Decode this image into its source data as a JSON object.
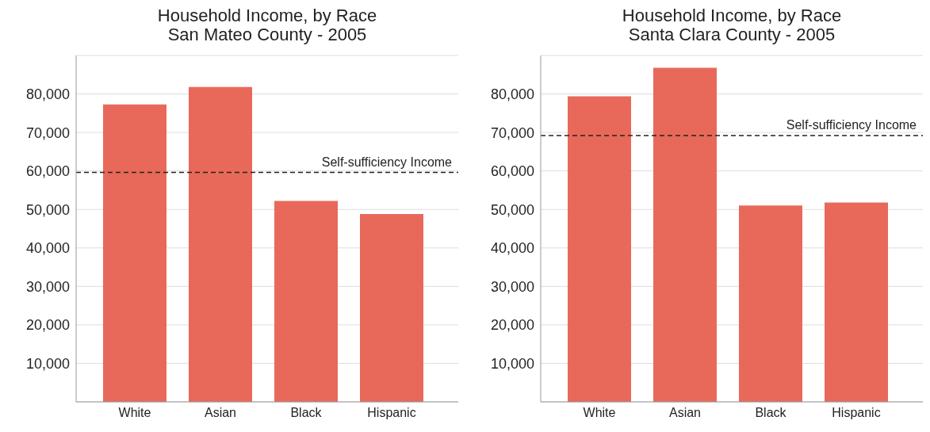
{
  "chart_data": [
    {
      "type": "bar",
      "title": "Household Income, by Race",
      "subtitle": "San Mateo County - 2005",
      "categories": [
        "White",
        "Asian",
        "Black",
        "Hispanic"
      ],
      "values": [
        77300,
        81800,
        52200,
        48800
      ],
      "color": "#e8695a",
      "ylim": [
        0,
        90000
      ],
      "yticks": [
        {
          "value": 10000,
          "label": "10,000"
        },
        {
          "value": 20000,
          "label": "20,000"
        },
        {
          "value": 30000,
          "label": "30,000"
        },
        {
          "value": 40000,
          "label": "40,000"
        },
        {
          "value": 50000,
          "label": "50,000"
        },
        {
          "value": 60000,
          "label": "60,000"
        },
        {
          "value": 70000,
          "label": "70,000"
        },
        {
          "value": 80000,
          "label": "80,000"
        }
      ],
      "grid": "y",
      "ref_lines": [
        {
          "axis": "y",
          "value": 59600,
          "label": "Self-sufficiency Income",
          "line_style": "dashed",
          "color": "#222222"
        }
      ]
    },
    {
      "type": "bar",
      "title": "Household Income, by Race",
      "subtitle": "Santa Clara County - 2005",
      "categories": [
        "White",
        "Asian",
        "Black",
        "Hispanic"
      ],
      "values": [
        79400,
        86800,
        51000,
        51800
      ],
      "color": "#e8695a",
      "ylim": [
        0,
        90000
      ],
      "yticks": [
        {
          "value": 10000,
          "label": "10,000"
        },
        {
          "value": 20000,
          "label": "20,000"
        },
        {
          "value": 30000,
          "label": "30,000"
        },
        {
          "value": 40000,
          "label": "40,000"
        },
        {
          "value": 50000,
          "label": "50,000"
        },
        {
          "value": 60000,
          "label": "60,000"
        },
        {
          "value": 70000,
          "label": "70,000"
        },
        {
          "value": 80000,
          "label": "80,000"
        }
      ],
      "grid": "y",
      "ref_lines": [
        {
          "axis": "y",
          "value": 69200,
          "label": "Self-sufficiency Income",
          "line_style": "dashed",
          "color": "#222222"
        }
      ]
    }
  ]
}
